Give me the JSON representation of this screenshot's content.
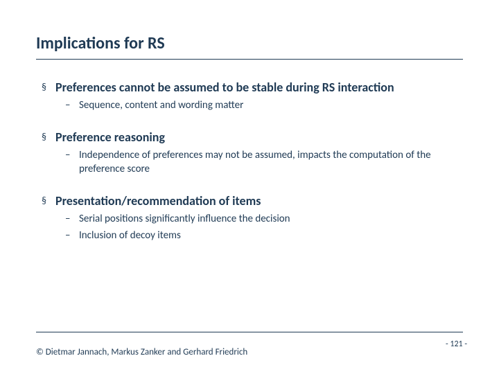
{
  "colors": {
    "text": "#1f3a54",
    "rule": "#1f3a54"
  },
  "fontsize": {
    "title": 24,
    "l1": 18,
    "l2": 15,
    "footer": 13,
    "pagenum": 12
  },
  "title": "Implications for RS",
  "bullets": [
    {
      "text": "Preferences cannot be assumed to be stable during RS interaction",
      "sub": [
        "Sequence, content and wording matter"
      ]
    },
    {
      "text": "Preference reasoning",
      "sub": [
        "Independence of preferences may not be assumed, impacts the computation of the preference score"
      ]
    },
    {
      "text": "Presentation/recommendation of items",
      "sub": [
        "Serial positions  significantly influence the decision",
        "Inclusion of decoy items"
      ]
    }
  ],
  "copyright": "© Dietmar Jannach, Markus Zanker and Gerhard Friedrich",
  "page_number": "- 121 -",
  "bullet_glyph": "§",
  "dash_glyph": "–"
}
